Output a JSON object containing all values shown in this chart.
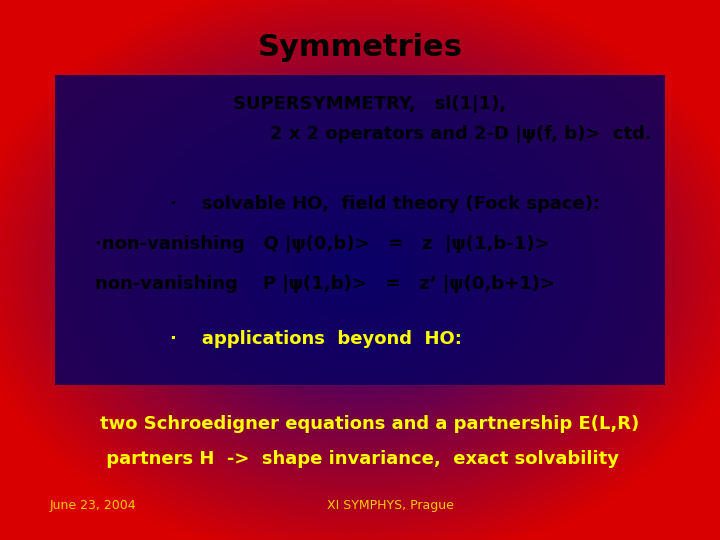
{
  "title": "Symmetries",
  "title_fontsize": 22,
  "title_color": "#000000",
  "line1": "SUPERSYMMETRY,   sl(1|1),",
  "line2": "2 x 2 operators and 2-D |ψ(f, b)>  ctd.",
  "bullet1": "·    solvable HO,  field theory (Fock space):",
  "line3": "·non-vanishing   Q |ψ(0,b)>   =   z  |ψ(1,b-1)>",
  "line4": "non-vanishing    P |ψ(1,b)>   =   z’ |ψ(0,b+1)>",
  "bullet2": "·    applications  beyond  HO:",
  "line5": "two Schroedigner equations and a partnership E(L,R)",
  "line6": " partners H  ->  shape invariance,  exact solvability",
  "footer_left": "June 23, 2004",
  "footer_right": "XI SYMPHYS, Prague",
  "text_color_black": "#000000",
  "text_color_yellow": "#ffff00",
  "text_color_footer": "#ffcc00",
  "font_main": "Comic Sans MS",
  "fontsize_subtitle": 13,
  "fontsize_body": 13,
  "fontsize_footer": 9,
  "bg_red": [
    0.85,
    0.0,
    0.0
  ],
  "bg_blue": [
    0.05,
    0.0,
    0.55
  ]
}
